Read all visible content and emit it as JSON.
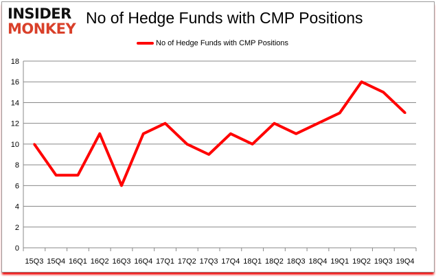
{
  "logo": {
    "line1": "INSIDER",
    "line2": "MONKEY"
  },
  "chart_data": {
    "type": "line",
    "title": "No of Hedge Funds with CMP Positions",
    "categories": [
      "15Q3",
      "15Q4",
      "16Q1",
      "16Q2",
      "16Q3",
      "16Q4",
      "17Q1",
      "17Q2",
      "17Q3",
      "17Q4",
      "18Q1",
      "18Q2",
      "18Q3",
      "18Q4",
      "19Q1",
      "19Q2",
      "19Q3",
      "19Q4"
    ],
    "series": [
      {
        "name": "No of Hedge Funds with CMP Positions",
        "values": [
          10,
          7,
          7,
          11,
          6,
          11,
          12,
          10,
          9,
          11,
          10,
          12,
          11,
          12,
          13,
          16,
          15,
          13
        ],
        "color": "#ff0000"
      }
    ],
    "ylim": [
      0,
      18
    ],
    "yticks": [
      0,
      2,
      4,
      6,
      8,
      10,
      12,
      14,
      16,
      18
    ],
    "grid": true,
    "legend": "top-center"
  }
}
